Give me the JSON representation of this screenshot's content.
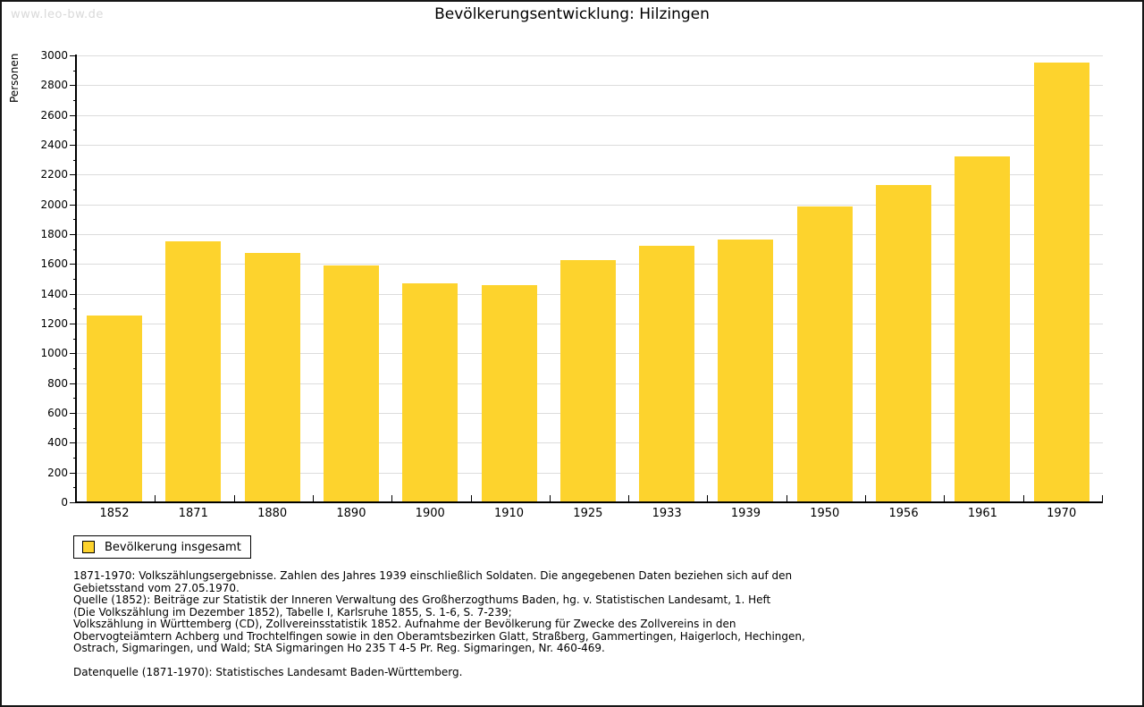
{
  "watermark": "www.leo-bw.de",
  "chart_data": {
    "type": "bar",
    "title": "Bevölkerungsentwicklung: Hilzingen",
    "xlabel": "",
    "ylabel": "Personen",
    "categories": [
      "1852",
      "1871",
      "1880",
      "1890",
      "1900",
      "1910",
      "1925",
      "1933",
      "1939",
      "1950",
      "1956",
      "1961",
      "1970"
    ],
    "values": [
      1255,
      1750,
      1672,
      1588,
      1470,
      1458,
      1628,
      1725,
      1762,
      1985,
      2128,
      2320,
      2955
    ],
    "series_name": "Bevölkerung insgesamt",
    "ylim": [
      0,
      3000
    ],
    "ytick_step": 200,
    "yminor_step": 100,
    "grid": "horizontal-major",
    "legend_position": "bottom-left",
    "bar_color": "#FDD32D",
    "grid_color": "#DCDCDC",
    "axis_color": "#000000"
  },
  "legend": {
    "label": "Bevölkerung insgesamt"
  },
  "footnotes": {
    "lines": [
      "1871-1970: Volkszählungsergebnisse. Zahlen des Jahres 1939 einschließlich Soldaten. Die angegebenen Daten beziehen sich auf den",
      "Gebietsstand vom 27.05.1970.",
      "Quelle (1852): Beiträge zur Statistik der Inneren Verwaltung des Großherzogthums Baden, hg. v. Statistischen Landesamt, 1. Heft",
      "(Die Volkszählung im Dezember 1852), Tabelle I, Karlsruhe 1855, S. 1-6, S. 7-239;",
      "Volkszählung in Württemberg (CD), Zollvereinsstatistik 1852. Aufnahme der Bevölkerung für Zwecke des Zollvereins in den",
      "Obervogteiämtern Achberg und Trochtelfingen sowie in den Oberamtsbezirken Glatt, Straßberg, Gammertingen, Haigerloch, Hechingen,",
      "Ostrach, Sigmaringen, und Wald; StA Sigmaringen Ho 235 T 4-5 Pr. Reg. Sigmaringen, Nr. 460-469."
    ],
    "datasource": "Datenquelle (1871-1970): Statistisches Landesamt Baden-Württemberg."
  }
}
